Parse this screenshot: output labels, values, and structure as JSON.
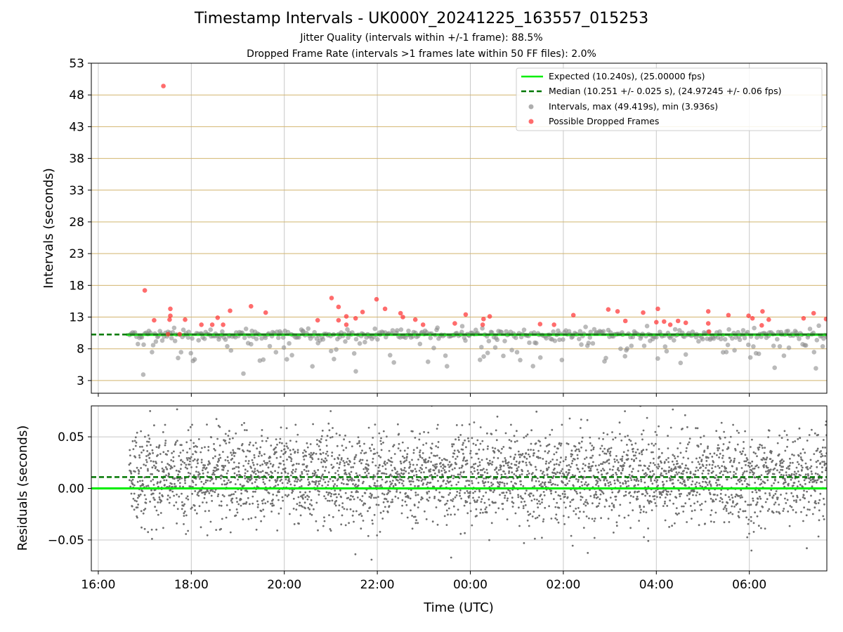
{
  "title": "Timestamp Intervals - UK000Y_20241225_163557_015253",
  "subtitle_1": "Jitter Quality (intervals within +/-1 frame): 88.5%",
  "subtitle_2": "Dropped Frame Rate (intervals >1 frames late within 50 FF files): 2.0%",
  "colors": {
    "expected": "#00ee00",
    "median": "#007700",
    "intervals": "#8c8c8c",
    "dropped": "#ff3b3b",
    "hgrid_top": "#d2b46e",
    "grid": "#c8c8c8",
    "residual_points": "#6e6e6e"
  },
  "chart_data": [
    {
      "type": "scatter",
      "ylabel": "Intervals (seconds)",
      "xlim": [
        "15:51",
        "07:40"
      ],
      "ylim": [
        1,
        53
      ],
      "y_ticks": [
        "3",
        "8",
        "13",
        "18",
        "23",
        "28",
        "33",
        "38",
        "43",
        "48",
        "53"
      ],
      "x_ticks": [
        "16:00",
        "18:00",
        "20:00",
        "22:00",
        "00:00",
        "02:00",
        "04:00",
        "06:00"
      ],
      "grid": true,
      "legend_position": "upper right",
      "legend": [
        {
          "label": "Expected (10.240s), (25.00000 fps)",
          "style": "solid-line"
        },
        {
          "label": "Median (10.251 +/- 0.025 s), (24.97245 +/- 0.06 fps)",
          "style": "dashed-line"
        },
        {
          "label": "Intervals, max (49.419s), min (3.936s)",
          "style": "gray-point"
        },
        {
          "label": "Possible Dropped Frames",
          "style": "red-point"
        }
      ],
      "expected_interval": 10.24,
      "median_interval": 10.251,
      "data_start": "16:36",
      "data_end": "07:40",
      "dropped_frames": [
        {
          "time": "17:00",
          "interval": 17.2
        },
        {
          "time": "17:12",
          "interval": 12.5
        },
        {
          "time": "17:24",
          "interval": 49.4
        },
        {
          "time": "17:33",
          "interval": 14.3
        },
        {
          "time": "17:33",
          "interval": 13.2
        },
        {
          "time": "17:32",
          "interval": 12.6
        },
        {
          "time": "17:30",
          "interval": 10.3
        },
        {
          "time": "17:45",
          "interval": 10.3
        },
        {
          "time": "17:52",
          "interval": 12.6
        },
        {
          "time": "18:13",
          "interval": 11.8
        },
        {
          "time": "18:27",
          "interval": 11.8
        },
        {
          "time": "18:34",
          "interval": 12.9
        },
        {
          "time": "18:41",
          "interval": 11.8
        },
        {
          "time": "18:50",
          "interval": 14.0
        },
        {
          "time": "19:17",
          "interval": 14.7
        },
        {
          "time": "19:36",
          "interval": 13.7
        },
        {
          "time": "20:43",
          "interval": 12.5
        },
        {
          "time": "21:01",
          "interval": 16.0
        },
        {
          "time": "21:10",
          "interval": 14.6
        },
        {
          "time": "21:10",
          "interval": 12.5
        },
        {
          "time": "21:20",
          "interval": 13.1
        },
        {
          "time": "21:20",
          "interval": 11.8
        },
        {
          "time": "21:32",
          "interval": 12.8
        },
        {
          "time": "21:41",
          "interval": 13.8
        },
        {
          "time": "21:59",
          "interval": 15.8
        },
        {
          "time": "22:10",
          "interval": 14.3
        },
        {
          "time": "22:30",
          "interval": 13.6
        },
        {
          "time": "22:33",
          "interval": 13.0
        },
        {
          "time": "22:49",
          "interval": 12.6
        },
        {
          "time": "22:59",
          "interval": 11.8
        },
        {
          "time": "23:40",
          "interval": 12.0
        },
        {
          "time": "23:54",
          "interval": 13.4
        },
        {
          "time": "00:16",
          "interval": 11.8
        },
        {
          "time": "00:17",
          "interval": 12.7
        },
        {
          "time": "00:25",
          "interval": 13.1
        },
        {
          "time": "01:30",
          "interval": 11.9
        },
        {
          "time": "01:48",
          "interval": 11.8
        },
        {
          "time": "02:13",
          "interval": 13.3
        },
        {
          "time": "02:58",
          "interval": 14.2
        },
        {
          "time": "03:10",
          "interval": 13.9
        },
        {
          "time": "03:20",
          "interval": 12.4
        },
        {
          "time": "03:43",
          "interval": 13.7
        },
        {
          "time": "04:02",
          "interval": 14.3
        },
        {
          "time": "04:00",
          "interval": 12.2
        },
        {
          "time": "04:10",
          "interval": 12.3
        },
        {
          "time": "04:18",
          "interval": 11.8
        },
        {
          "time": "04:28",
          "interval": 12.4
        },
        {
          "time": "04:38",
          "interval": 12.1
        },
        {
          "time": "05:07",
          "interval": 13.9
        },
        {
          "time": "05:07",
          "interval": 12.0
        },
        {
          "time": "05:08",
          "interval": 10.7
        },
        {
          "time": "05:33",
          "interval": 13.3
        },
        {
          "time": "05:59",
          "interval": 13.2
        },
        {
          "time": "06:04",
          "interval": 12.8
        },
        {
          "time": "06:16",
          "interval": 11.7
        },
        {
          "time": "06:17",
          "interval": 13.9
        },
        {
          "time": "06:25",
          "interval": 12.6
        },
        {
          "time": "07:10",
          "interval": 12.8
        },
        {
          "time": "07:23",
          "interval": 13.6
        },
        {
          "time": "07:39",
          "interval": 12.7
        }
      ]
    },
    {
      "type": "scatter",
      "ylabel": "Residuals (seconds)",
      "xlabel": "Time (UTC)",
      "ylim": [
        -0.08,
        0.08
      ],
      "y_ticks": [
        "−0.05",
        "0.00",
        "0.05"
      ],
      "x_ticks": [
        "16:00",
        "18:00",
        "20:00",
        "22:00",
        "00:00",
        "02:00",
        "04:00",
        "06:00"
      ],
      "grid": true,
      "expected_residual": 0.0,
      "median_residual": 0.011,
      "residual_spread_sd": 0.022
    }
  ]
}
